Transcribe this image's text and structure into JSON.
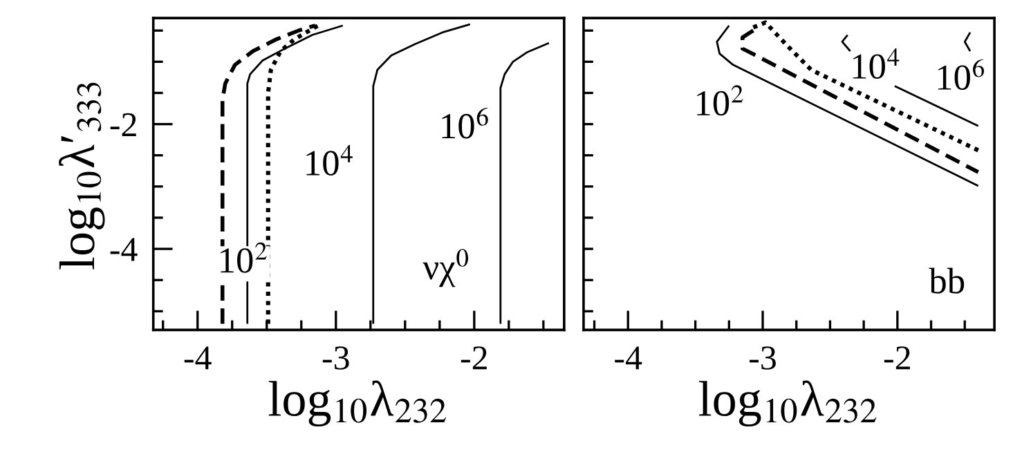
{
  "chart_data": [
    {
      "type": "line",
      "xlabel": "log$_{10}$λ$_{232}$",
      "ylabel": "log$_{10}$λ′$_{333}$",
      "xlim": [
        -4.32,
        -1.35
      ],
      "ylim": [
        -5.3,
        -0.3
      ],
      "xticks": [
        {
          "value": -4.25,
          "label": null
        },
        -4,
        {
          "value": -3.75,
          "label": null
        },
        {
          "value": -3.5,
          "label": null
        },
        {
          "value": -3.25,
          "label": null
        },
        -3,
        {
          "value": -2.75,
          "label": null
        },
        {
          "value": -2.5,
          "label": null
        },
        {
          "value": -2.25,
          "label": null
        },
        -2,
        {
          "value": -1.75,
          "label": null
        },
        {
          "value": -1.5,
          "label": null
        }
      ],
      "yticks": [
        {
          "value": -5,
          "label": null
        },
        {
          "value": -4.5,
          "label": null
        },
        -4,
        {
          "value": -3.5,
          "label": null
        },
        {
          "value": -3,
          "label": null
        },
        {
          "value": -2.5,
          "label": null
        },
        -2,
        {
          "value": -1.5,
          "label": null
        },
        {
          "value": -1,
          "label": null
        },
        {
          "value": -0.5,
          "label": null
        }
      ],
      "grid": false,
      "legend": false,
      "series": [
        {
          "color": "#000000",
          "line_style": "dashed",
          "x": [
            -3.82,
            -3.82,
            -3.8,
            -3.73,
            -3.6,
            -3.43,
            -3.27,
            -3.15
          ],
          "values": [
            -5.2,
            -1.61,
            -1.35,
            -1.05,
            -0.83,
            -0.64,
            -0.5,
            -0.42
          ]
        },
        {
          "color": "#000000",
          "line_style": "solid",
          "x": [
            -3.64,
            -3.64,
            -3.62,
            -3.53,
            -3.37,
            -3.17,
            -2.95
          ],
          "values": [
            -5.2,
            -1.35,
            -1.2,
            -0.98,
            -0.79,
            -0.57,
            -0.42
          ]
        },
        {
          "color": "#000000",
          "line_style": "dotted",
          "x": [
            -3.49,
            -3.49,
            -3.47,
            -3.4,
            -3.3,
            -3.13
          ],
          "values": [
            -5.2,
            -1.5,
            -1.13,
            -0.83,
            -0.64,
            -0.42
          ]
        },
        {
          "color": "#000000",
          "line_style": "solid",
          "x": [
            -2.73,
            -2.73,
            -2.7,
            -2.6,
            -2.43,
            -2.23,
            -2.03
          ],
          "values": [
            -5.2,
            -1.39,
            -1.13,
            -0.9,
            -0.72,
            -0.53,
            -0.4
          ]
        },
        {
          "color": "#000000",
          "line_style": "solid",
          "x": [
            -1.81,
            -1.81,
            -1.78,
            -1.72,
            -1.62,
            -1.46
          ],
          "values": [
            -5.2,
            -1.42,
            -1.2,
            -1.0,
            -0.85,
            -0.7
          ]
        }
      ],
      "annotations": [
        "10$^{2}$",
        "10$^{4}$",
        "10$^{6}$",
        "νχ$^{0}$"
      ]
    },
    {
      "type": "line",
      "xlabel": "log$_{10}$λ$_{232}$",
      "xlim": [
        -4.33,
        -1.28
      ],
      "ylim": [
        -5.3,
        -0.3
      ],
      "tick_labels": "x",
      "xticks": [
        {
          "value": -4.25,
          "label": null
        },
        -4,
        {
          "value": -3.75,
          "label": null
        },
        {
          "value": -3.5,
          "label": null
        },
        {
          "value": -3.25,
          "label": null
        },
        -3,
        {
          "value": -2.75,
          "label": null
        },
        {
          "value": -2.5,
          "label": null
        },
        {
          "value": -2.25,
          "label": null
        },
        -2,
        {
          "value": -1.75,
          "label": null
        },
        {
          "value": -1.5,
          "label": null
        }
      ],
      "yticks": [
        {
          "value": -5,
          "label": null
        },
        {
          "value": -4.5,
          "label": null
        },
        {
          "value": -4,
          "label": null
        },
        {
          "value": -3.5,
          "label": null
        },
        {
          "value": -3,
          "label": null
        },
        {
          "value": -2.5,
          "label": null
        },
        {
          "value": -2,
          "label": null
        },
        {
          "value": -1.5,
          "label": null
        },
        {
          "value": -1,
          "label": null
        },
        {
          "value": -0.5,
          "label": null
        }
      ],
      "grid": false,
      "legend": false,
      "series": [
        {
          "color": "#000000",
          "line_style": "solid",
          "x": [
            -3.25,
            -3.34,
            -3.32,
            -3.22,
            -1.4
          ],
          "values": [
            -0.42,
            -0.68,
            -0.87,
            -1.05,
            -2.99
          ]
        },
        {
          "color": "#000000",
          "line_style": "dashed",
          "x": [
            -3.07,
            -3.15,
            -3.15,
            -3.05,
            -1.4
          ],
          "values": [
            -0.5,
            -0.61,
            -0.79,
            -0.9,
            -2.77
          ]
        },
        {
          "color": "#000000",
          "line_style": "dotted",
          "x": [
            -3.07,
            -2.98,
            -2.81,
            -2.64,
            -1.4
          ],
          "values": [
            -0.45,
            -0.37,
            -0.76,
            -1.13,
            -2.42
          ]
        },
        {
          "color": "#000000",
          "line_style": "solid",
          "x": [
            -2.37,
            -2.41,
            -2.35,
            -2.2,
            -2.02,
            -1.4
          ],
          "values": [
            -0.57,
            -0.68,
            -0.83,
            null,
            -1.39,
            -2.03
          ]
        },
        {
          "color": "#000000",
          "line_style": "solid",
          "x": [
            -1.46,
            -1.5,
            -1.46
          ],
          "values": [
            -0.53,
            -0.68,
            -0.83
          ]
        }
      ],
      "annotations": [
        "10$^{2}$",
        "10$^{4}$",
        "10$^{6}$",
        "bb"
      ]
    }
  ]
}
